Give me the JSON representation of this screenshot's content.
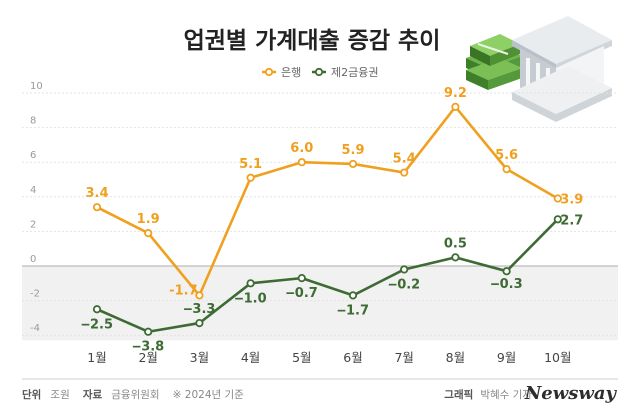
{
  "chart_data": {
    "type": "line",
    "title": "업권별 가계대출 증감 추이",
    "categories": [
      "1월",
      "2월",
      "3월",
      "4월",
      "5월",
      "6월",
      "7월",
      "8월",
      "9월",
      "10월"
    ],
    "series": [
      {
        "name": "은행",
        "color": "#f0a01f",
        "values": [
          3.4,
          1.9,
          -1.7,
          5.1,
          6.0,
          5.9,
          5.4,
          9.2,
          5.6,
          3.9
        ]
      },
      {
        "name": "제2금융권",
        "color": "#3d6b33",
        "values": [
          -2.5,
          -3.8,
          -3.3,
          -1.0,
          -0.7,
          -1.7,
          -0.2,
          0.5,
          -0.3,
          2.7
        ]
      }
    ],
    "value_labels": {
      "은행": [
        "3.4",
        "1.9",
        "-1.7",
        "5.1",
        "6.0",
        "5.9",
        "5.4",
        "9.2",
        "5.6",
        "3.9"
      ],
      "제2금융권": [
        "‒2.5",
        "‒3.8",
        "‒3.3",
        "‒1.0",
        "‒0.7",
        "‒1.7",
        "‒0.2",
        "0.5",
        "‒0.3",
        "2.7"
      ]
    },
    "yticks": [
      "10",
      "8",
      "6",
      "4",
      "2",
      "0",
      "-2",
      "-4"
    ],
    "ytick_values": [
      10,
      8,
      6,
      4,
      2,
      0,
      -2,
      -4
    ],
    "ylim": [
      -4.3,
      10
    ],
    "legend_position": "top-center",
    "grid": "horizontal"
  },
  "footer": {
    "unit_label": "단위",
    "unit_value": "조원",
    "source_label": "자료",
    "source_value": "금융위원회",
    "note": "※ 2024년 기준",
    "graphic_label": "그래픽",
    "graphic_author": "박혜수 기자",
    "brand": "Newsway"
  },
  "illustration": {
    "name": "money-and-bank-illustration"
  }
}
